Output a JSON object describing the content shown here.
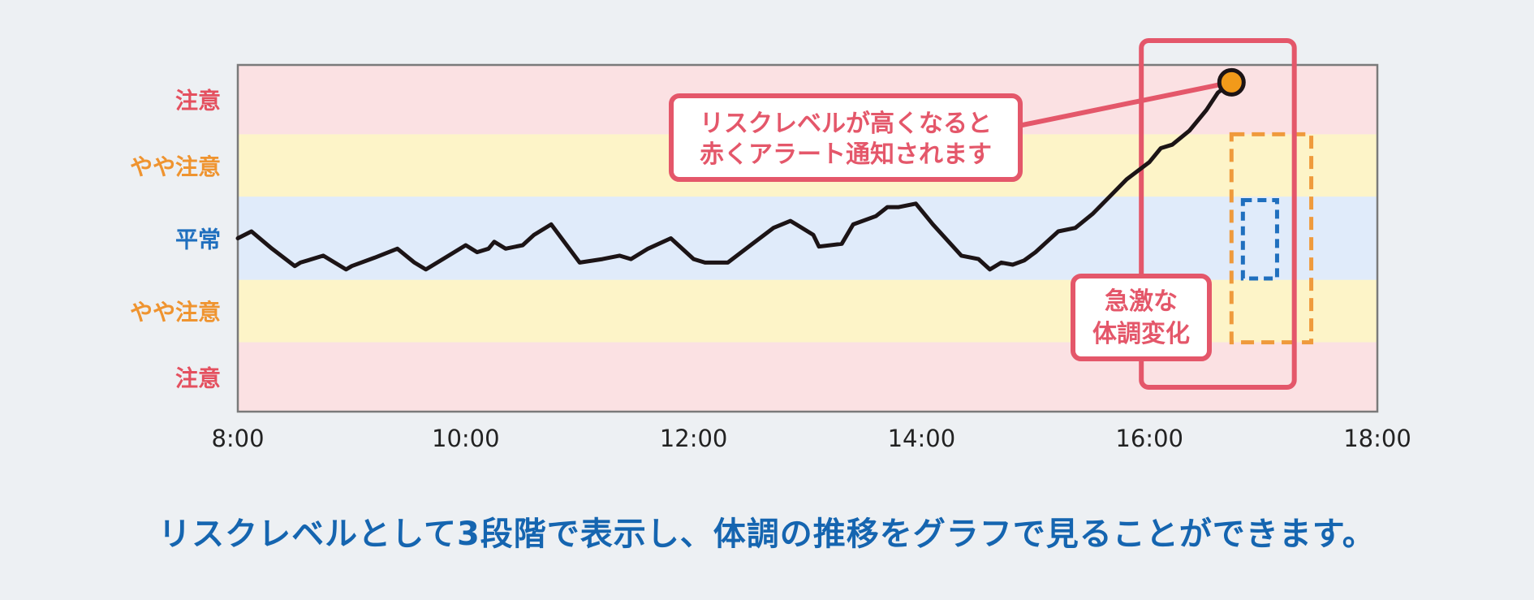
{
  "caption": "リスクレベルとして3段階で表示し、体調の推移をグラフで見ることができます。",
  "colors": {
    "caution": "#e4505f",
    "slight_caution": "#ef9430",
    "normal": "#1f6fbe",
    "band_caution": "#fbe1e3",
    "band_slight": "#fdf4c8",
    "band_normal": "#e0ebfa",
    "line": "#1c1416",
    "alert_box": "#e4576a",
    "dash_orange": "#ef9a3c",
    "dash_blue": "#1f6fbe",
    "marker_fill": "#f29a1a"
  },
  "chart_data": {
    "type": "line",
    "title": "",
    "xlabel": "",
    "ylabel": "",
    "x_tick_labels": [
      "8:00",
      "10:00",
      "12:00",
      "14:00",
      "16:00",
      "18:00"
    ],
    "xlim": [
      8,
      18
    ],
    "ylim": [
      -2.5,
      2.5
    ],
    "risk_levels": [
      {
        "label": "注意",
        "range": [
          1.5,
          2.5
        ],
        "level": "caution"
      },
      {
        "label": "やや注意",
        "range": [
          0.6,
          1.5
        ],
        "level": "slight_caution"
      },
      {
        "label": "平常",
        "range": [
          -0.6,
          0.6
        ],
        "level": "normal"
      },
      {
        "label": "やや注意",
        "range": [
          -1.5,
          -0.6
        ],
        "level": "slight_caution"
      },
      {
        "label": "注意",
        "range": [
          -2.5,
          -1.5
        ],
        "level": "caution"
      }
    ],
    "series": [
      {
        "x": [
          8.0,
          8.12,
          8.3,
          8.5,
          8.55,
          8.75,
          8.95,
          9.0,
          9.2,
          9.4,
          9.55,
          9.65,
          9.8,
          10.0,
          10.1,
          10.2,
          10.25,
          10.35,
          10.5,
          10.6,
          10.75,
          11.0,
          11.2,
          11.35,
          11.45,
          11.6,
          11.8,
          12.0,
          12.1,
          12.3,
          12.5,
          12.7,
          12.85,
          12.9,
          13.05,
          13.1,
          13.3,
          13.4,
          13.6,
          13.7,
          13.8,
          13.95,
          14.1,
          14.35,
          14.5,
          14.6,
          14.7,
          14.8,
          14.9,
          15.0,
          15.1,
          15.2,
          15.35,
          15.5,
          15.65,
          15.8,
          16.0,
          16.1,
          16.2,
          16.35,
          16.5,
          16.6,
          16.72
        ],
        "y": [
          0.0,
          0.1,
          -0.15,
          -0.4,
          -0.35,
          -0.25,
          -0.45,
          -0.4,
          -0.28,
          -0.15,
          -0.35,
          -0.45,
          -0.3,
          -0.1,
          -0.2,
          -0.15,
          -0.05,
          -0.15,
          -0.1,
          0.05,
          0.2,
          -0.35,
          -0.3,
          -0.25,
          -0.3,
          -0.15,
          0.0,
          -0.3,
          -0.35,
          -0.35,
          -0.1,
          0.15,
          0.25,
          0.2,
          0.05,
          -0.12,
          -0.08,
          0.2,
          0.32,
          0.45,
          0.45,
          0.5,
          0.2,
          -0.25,
          -0.3,
          -0.45,
          -0.35,
          -0.38,
          -0.32,
          -0.2,
          -0.05,
          0.1,
          0.15,
          0.35,
          0.6,
          0.85,
          1.1,
          1.3,
          1.35,
          1.55,
          1.85,
          2.1,
          2.25
        ]
      }
    ],
    "callouts": {
      "alert_text_line1": "リスクレベルが高くなると",
      "alert_text_line2": "赤くアラート通知されます",
      "change_text_line1": "急激な",
      "change_text_line2": "体調変化"
    },
    "highlight_window": [
      16.0,
      17.2
    ],
    "slight_dashed_window": [
      16.72,
      17.42
    ],
    "normal_dashed_window": [
      16.82,
      17.12
    ]
  }
}
